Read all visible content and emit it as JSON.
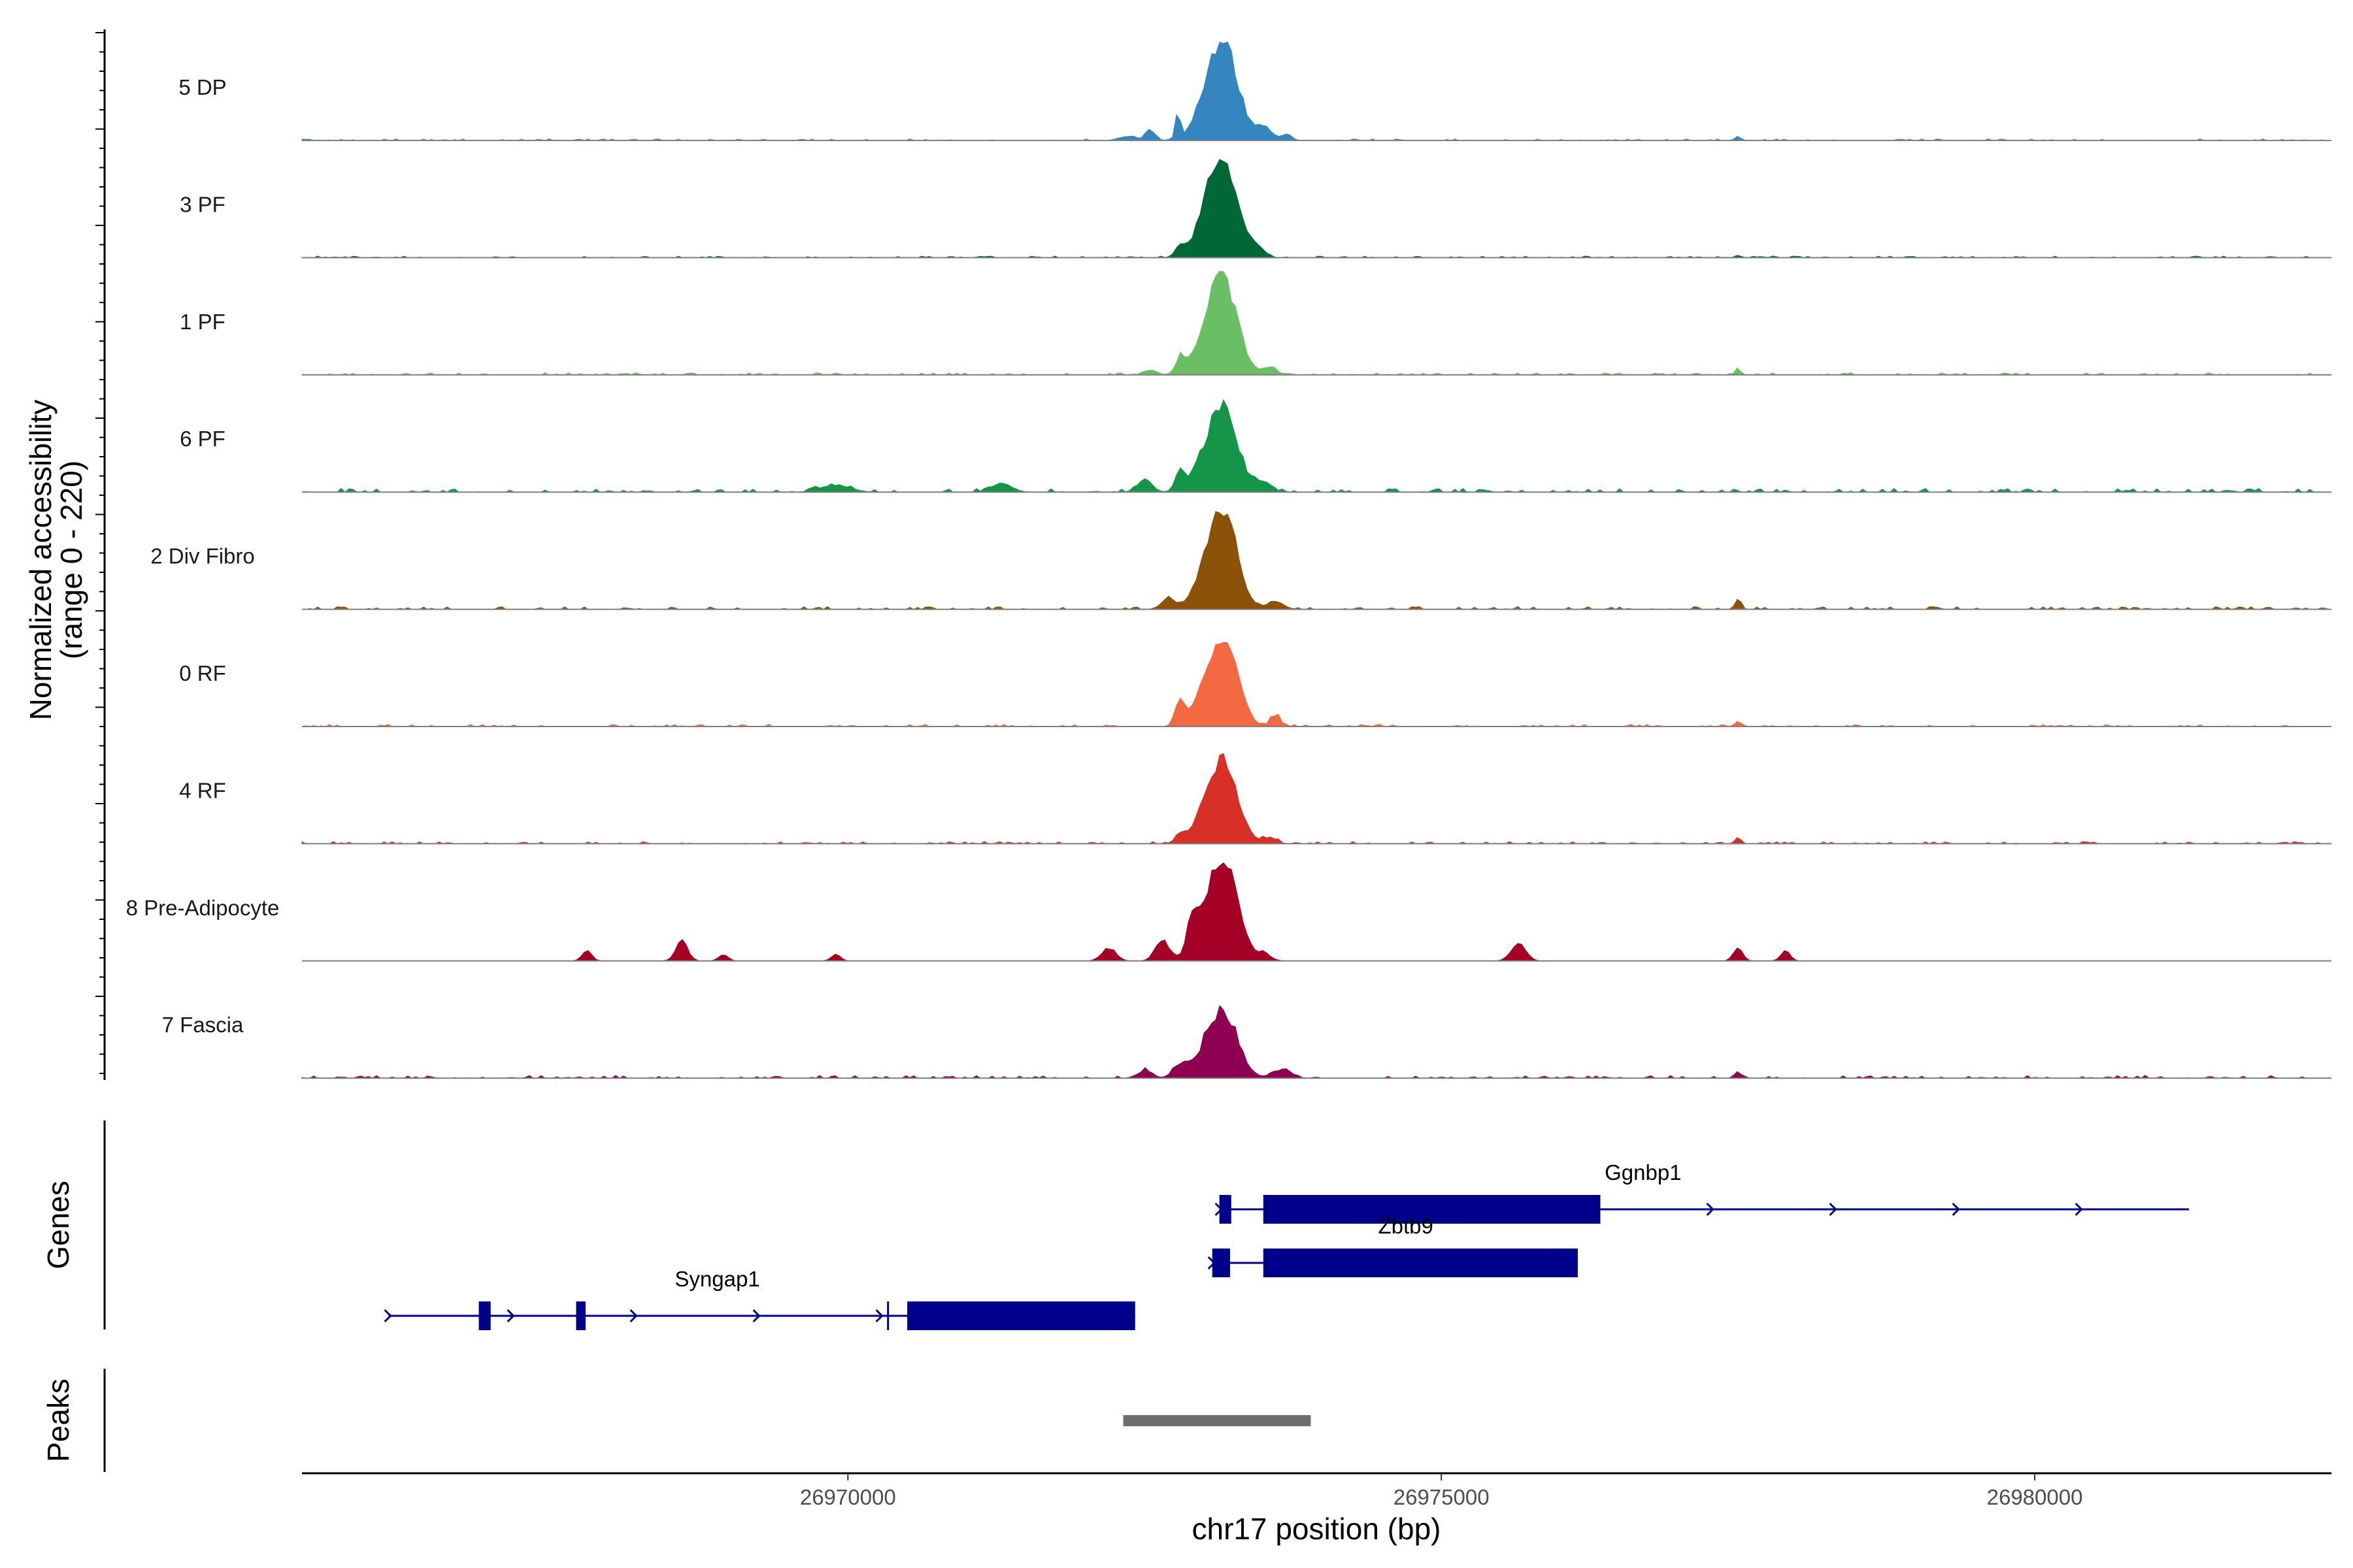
{
  "chart_data": {
    "type": "area",
    "chromosome": "chr17",
    "xlabel": "chr17 position (bp)",
    "ylabel": "Normalized accessibility",
    "ylabel_range": "(range 0 - 220)",
    "ylim": [
      0,
      220
    ],
    "xlim": [
      26965400,
      26982500
    ],
    "x_ticks": [
      26970000,
      26975000,
      26980000
    ],
    "x_tick_labels": [
      "26970000",
      "26975000",
      "26980000"
    ],
    "tracks_panel_label": "Genes",
    "peaks_panel_label": "Peaks",
    "peak_center": 26973120,
    "series": [
      {
        "name": "5 DP",
        "color": "#3585C1",
        "peak_height": 170,
        "noise": 3,
        "side_peaks": [
          [
            26972780,
            20,
            50
          ],
          [
            26972550,
            40,
            20
          ],
          [
            26972350,
            70,
            8
          ],
          [
            26973500,
            70,
            28
          ],
          [
            26973700,
            40,
            12
          ],
          [
            26977500,
            25,
            8
          ]
        ]
      },
      {
        "name": "3 PF",
        "color": "#006837",
        "peak_height": 170,
        "noise": 3,
        "side_peaks": [
          [
            26972800,
            40,
            20
          ],
          [
            26973450,
            60,
            18
          ],
          [
            26977500,
            25,
            5
          ]
        ]
      },
      {
        "name": "1 PF",
        "color": "#6ABE64",
        "peak_height": 165,
        "noise": 4,
        "side_peaks": [
          [
            26972800,
            40,
            30
          ],
          [
            26972550,
            50,
            10
          ],
          [
            26973550,
            60,
            15
          ],
          [
            26977500,
            25,
            10
          ]
        ]
      },
      {
        "name": "6 PF",
        "color": "#159547",
        "peak_height": 145,
        "noise": 7,
        "side_peaks": [
          [
            26972800,
            40,
            40
          ],
          [
            26972500,
            60,
            25
          ],
          [
            26971300,
            80,
            18
          ],
          [
            26969900,
            120,
            14
          ],
          [
            26973500,
            70,
            20
          ]
        ]
      },
      {
        "name": "2 Div Fibro",
        "color": "#8B5208",
        "peak_height": 160,
        "noise": 5,
        "side_peaks": [
          [
            26972700,
            60,
            20
          ],
          [
            26973600,
            70,
            15
          ],
          [
            26977500,
            25,
            22
          ]
        ]
      },
      {
        "name": "0 RF",
        "color": "#F36A42",
        "peak_height": 150,
        "noise": 4,
        "side_peaks": [
          [
            26972800,
            40,
            45
          ],
          [
            26973600,
            40,
            22
          ],
          [
            26977500,
            25,
            10
          ]
        ]
      },
      {
        "name": "4 RF",
        "color": "#D73027",
        "peak_height": 140,
        "noise": 4,
        "side_peaks": [
          [
            26972800,
            40,
            15
          ],
          [
            26973550,
            60,
            12
          ],
          [
            26977500,
            25,
            12
          ]
        ]
      },
      {
        "name": "8 Pre-Adipocyte",
        "color": "#A50026",
        "peak_height": 175,
        "noise": 0,
        "side_peaks": [
          [
            26967800,
            40,
            20
          ],
          [
            26968600,
            50,
            40
          ],
          [
            26968950,
            40,
            12
          ],
          [
            26969900,
            40,
            12
          ],
          [
            26972200,
            60,
            25
          ],
          [
            26972650,
            60,
            40
          ],
          [
            26973500,
            60,
            15
          ],
          [
            26975650,
            60,
            35
          ],
          [
            26977500,
            40,
            25
          ],
          [
            26977900,
            40,
            20
          ],
          [
            26972900,
            40,
            60
          ]
        ]
      },
      {
        "name": "7 Fascia",
        "color": "#8E0152",
        "peak_height": 115,
        "noise": 5,
        "side_peaks": [
          [
            26972800,
            60,
            25
          ],
          [
            26972500,
            60,
            15
          ],
          [
            26973650,
            80,
            15
          ],
          [
            26977500,
            30,
            12
          ]
        ]
      }
    ],
    "genes": [
      {
        "name": "Ggnbp1",
        "row": 0,
        "start": 26973130,
        "end": 26981300,
        "strand": "+",
        "exons": [
          [
            26973130,
            26973230
          ],
          [
            26973500,
            26976340
          ]
        ],
        "label_x": 26976700
      },
      {
        "name": "Zbtb9",
        "row": 1,
        "start": 26973070,
        "end": 26976150,
        "strand": "+",
        "exons": [
          [
            26973070,
            26973220
          ],
          [
            26973500,
            26976150
          ]
        ],
        "label_x": 26974700
      },
      {
        "name": "Syngap1",
        "row": 2,
        "start": 26966130,
        "end": 26972420,
        "strand": "+",
        "exons": [
          [
            26966890,
            26966990
          ],
          [
            26967710,
            26967790
          ],
          [
            26970330,
            26970345
          ],
          [
            26970500,
            26972420
          ]
        ],
        "label_x": 26968900
      }
    ],
    "peaks": [
      [
        26972320,
        26973900
      ]
    ]
  }
}
